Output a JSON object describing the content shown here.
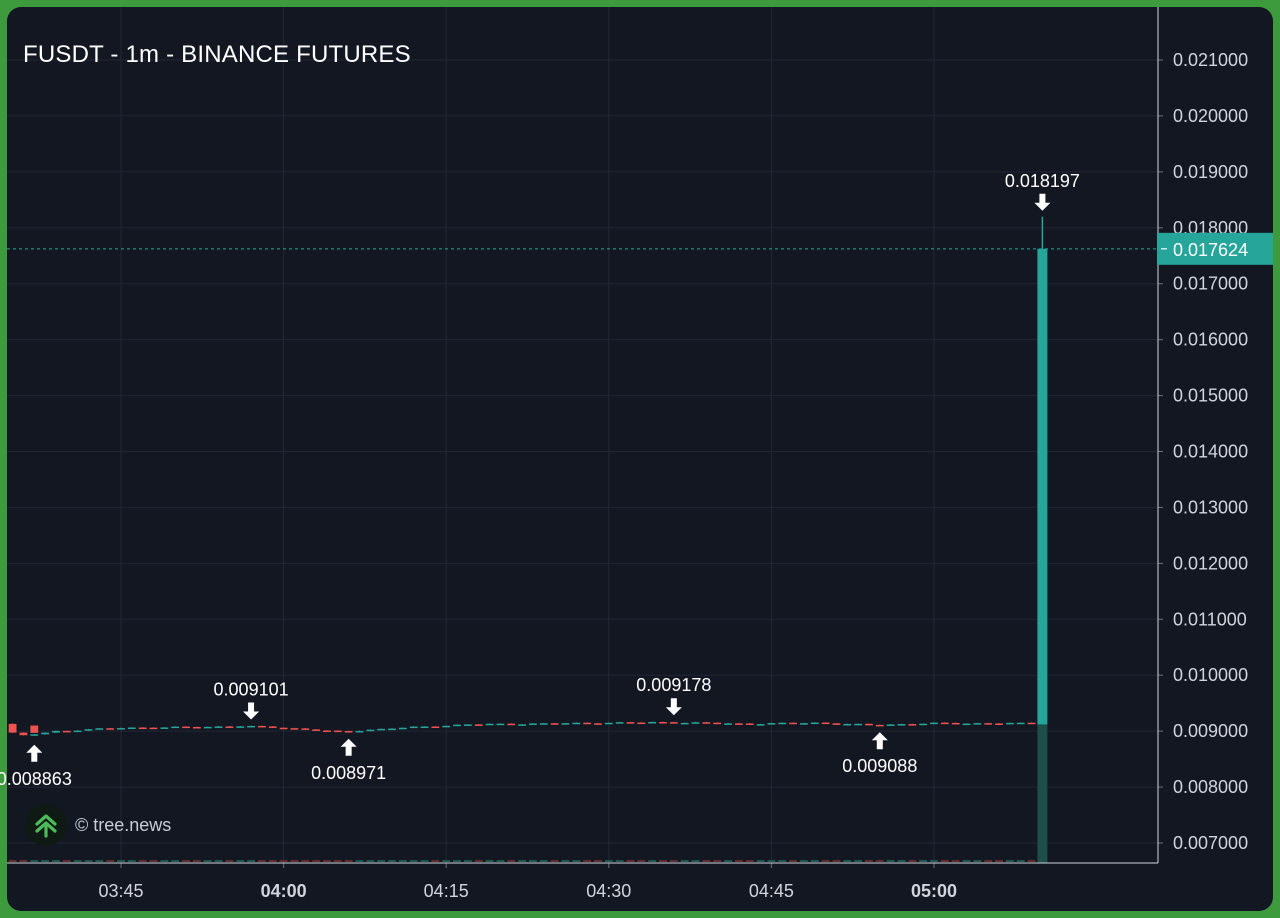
{
  "chart_data": {
    "type": "candlestick",
    "title": "FUSDT - 1m - BINANCE FUTURES",
    "watermark": "© tree.news",
    "ylim": [
      0.0066,
      0.0218
    ],
    "y_ticks": [
      "0.021000",
      "0.020000",
      "0.019000",
      "0.018000",
      "0.017000",
      "0.016000",
      "0.015000",
      "0.014000",
      "0.013000",
      "0.012000",
      "0.011000",
      "0.010000",
      "0.009000",
      "0.008000",
      "0.007000"
    ],
    "x_ticks": [
      {
        "label": "03:45",
        "bold": false
      },
      {
        "label": "04:00",
        "bold": true
      },
      {
        "label": "04:15",
        "bold": false
      },
      {
        "label": "04:30",
        "bold": false
      },
      {
        "label": "04:45",
        "bold": false
      },
      {
        "label": "05:00",
        "bold": true
      }
    ],
    "last_price": {
      "label": "0.017624",
      "value": 0.017624
    },
    "annotations": [
      {
        "label": "0.008863",
        "value": 0.008863,
        "type": "low",
        "time": "03:37"
      },
      {
        "label": "0.009101",
        "value": 0.009101,
        "type": "high",
        "time": "03:57"
      },
      {
        "label": "0.008971",
        "value": 0.008971,
        "type": "low",
        "time": "04:06"
      },
      {
        "label": "0.009178",
        "value": 0.009178,
        "type": "high",
        "time": "04:36"
      },
      {
        "label": "0.009088",
        "value": 0.009088,
        "type": "low",
        "time": "04:55"
      },
      {
        "label": "0.018197",
        "value": 0.018197,
        "type": "high",
        "time": "05:10"
      }
    ],
    "colors": {
      "background": "#131722",
      "grid": "#232734",
      "up": "#26a69a",
      "down": "#ef5350",
      "text": "#ffffff",
      "axis_text": "#d1d4dc",
      "last_price_bg": "#26a69a",
      "frame": "#3d9a3d"
    },
    "spike": {
      "time": "05:10",
      "open": 0.00912,
      "high": 0.018197,
      "low": 0.00911,
      "close": 0.017624
    }
  }
}
